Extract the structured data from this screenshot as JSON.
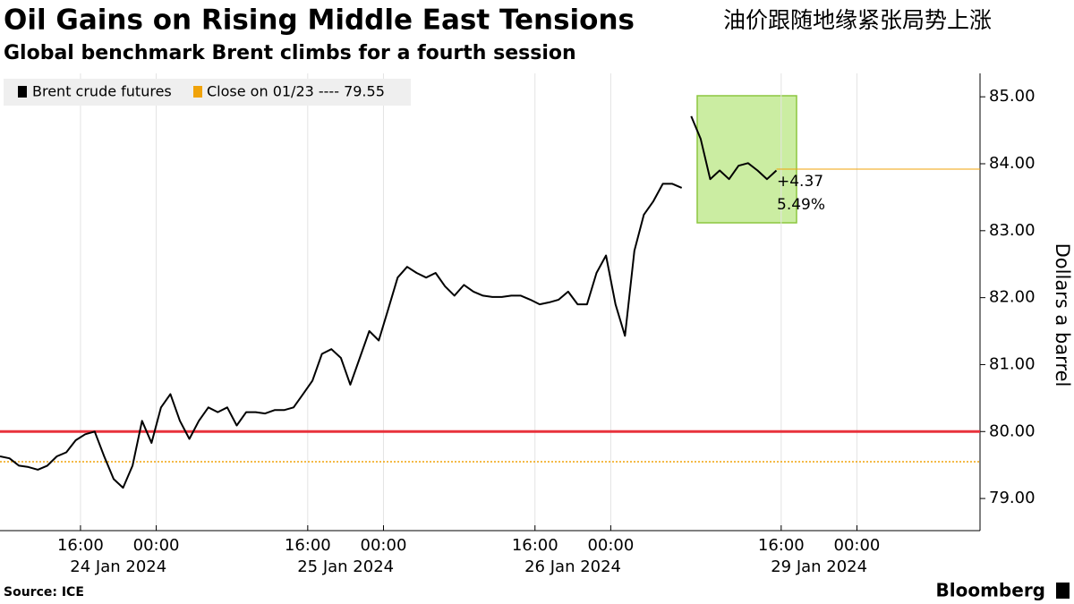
{
  "chart_data": {
    "type": "line",
    "title": "Oil Gains on Rising Middle East Tensions",
    "title_cn": "油价跟随地缘紧张局势上涨",
    "subtitle": "Global benchmark Brent climbs for a fourth session",
    "ylabel": "Dollars a barrel",
    "source": "Source: ICE",
    "brand": "Bloomberg",
    "x": [
      7.5,
      8.5,
      9.5,
      10.5,
      11.5,
      12.5,
      13.5,
      14.5,
      15.5,
      16.5,
      17.5,
      18.5,
      19.5,
      20.5,
      21.5,
      22.5,
      23.5,
      24.5,
      25.5,
      26.5,
      27.5,
      28.5,
      29.5,
      30.5,
      31.5,
      32.5,
      33.5,
      34.5,
      35.5,
      36.5,
      37.5,
      38.5,
      39.5,
      40.5,
      41.5,
      42.5,
      43.5,
      44.5,
      45.5,
      46.5,
      47.5,
      48.5,
      49.5,
      50.5,
      51.5,
      52.5,
      53.5,
      54.5,
      55.5,
      56.5,
      57.5,
      58.5,
      59.5,
      60.5,
      61.5,
      62.5,
      63.5,
      64.5,
      65.5,
      66.5,
      67.5,
      68.5,
      69.5,
      70.5,
      71.5,
      72.5,
      73.5,
      74.5,
      75.5,
      76.5,
      77.5,
      78.5,
      79.5,
      80,
      80.5,
      81.5,
      82.5,
      83.5,
      84.5,
      85.5,
      86.5,
      87.5,
      88.5,
      89.5
    ],
    "series": [
      {
        "name": "Brent crude futures",
        "color": "#000000",
        "values": [
          79.63,
          79.6,
          79.49,
          79.47,
          79.43,
          79.49,
          79.63,
          79.69,
          79.87,
          79.96,
          80.0,
          79.63,
          79.29,
          79.16,
          79.49,
          80.16,
          79.83,
          80.36,
          80.56,
          80.16,
          79.89,
          80.16,
          80.36,
          80.29,
          80.36,
          80.09,
          80.29,
          80.29,
          80.27,
          80.32,
          80.32,
          80.36,
          80.56,
          80.76,
          81.16,
          81.23,
          81.1,
          80.7,
          81.1,
          81.5,
          81.36,
          81.83,
          82.3,
          82.46,
          82.37,
          82.3,
          82.37,
          82.17,
          82.03,
          82.19,
          82.09,
          82.03,
          82.01,
          82.01,
          82.03,
          82.03,
          81.97,
          81.9,
          81.93,
          81.97,
          82.09,
          81.9,
          81.9,
          82.37,
          82.63,
          81.9,
          81.43,
          82.7,
          83.24,
          83.44,
          83.7,
          83.7,
          83.64,
          null,
          84.71,
          84.37,
          83.77,
          83.9,
          83.77,
          83.97,
          84.01,
          83.9,
          83.77,
          83.9
        ]
      }
    ],
    "close_line": {
      "name": "Close on 01/23 ---- 79.55",
      "value": 79.55,
      "color": "#f0a30a"
    },
    "hline": {
      "value": 80,
      "color": "#e8323c"
    },
    "last_line": {
      "value": 83.92,
      "color": "#f0a30a"
    },
    "annotations": [
      "+4.37",
      "5.49%"
    ],
    "xlim": [
      7.5,
      111
    ],
    "xticks": [
      {
        "value": 16,
        "label": "16:00"
      },
      {
        "value": 24,
        "label": "00:00"
      },
      {
        "value": 40,
        "label": "16:00"
      },
      {
        "value": 48,
        "label": "00:00"
      },
      {
        "value": 64,
        "label": "16:00"
      },
      {
        "value": 72,
        "label": "00:00"
      },
      {
        "value": 90,
        "label": "16:00"
      },
      {
        "value": 98,
        "label": "00:00"
      }
    ],
    "x_date_labels": [
      "24 Jan 2024",
      "25 Jan 2024",
      "26 Jan 2024",
      "29 Jan 2024"
    ],
    "ylim": [
      78.52,
      85.35
    ],
    "yticks": [
      {
        "value": 79,
        "label": "79.00"
      },
      {
        "value": 80,
        "label": "80.00"
      },
      {
        "value": 81,
        "label": "81.00"
      },
      {
        "value": 82,
        "label": "82.00"
      },
      {
        "value": 83,
        "label": "83.00"
      },
      {
        "value": 84,
        "label": "84.00"
      },
      {
        "value": 85,
        "label": "85.00"
      }
    ],
    "grid": true
  }
}
